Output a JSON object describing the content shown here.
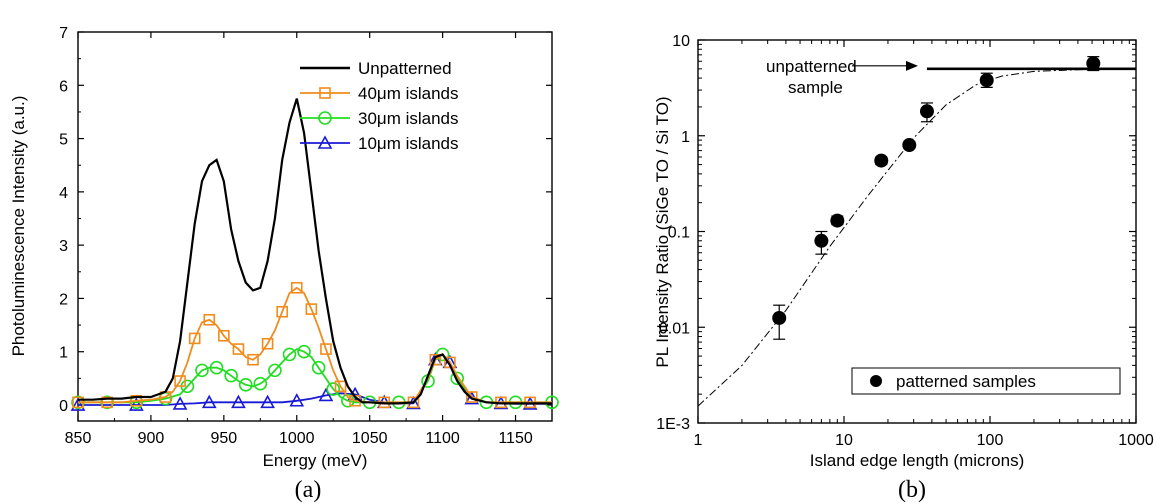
{
  "chart_data": [
    {
      "type": "line",
      "caption": "(a)",
      "xlabel": "Energy (meV)",
      "ylabel": "Photoluminescence Intensity (a.u.)",
      "xlim": [
        850,
        1175
      ],
      "ylim": [
        -0.3,
        7
      ],
      "xticks": [
        850,
        900,
        950,
        1000,
        1050,
        1100,
        1150
      ],
      "yticks": [
        0,
        1,
        2,
        3,
        4,
        5,
        6,
        7
      ],
      "legend_position": "top-right",
      "series": [
        {
          "name": "Unpatterned",
          "color": "#000000",
          "marker": "none",
          "x": [
            850,
            860,
            870,
            880,
            890,
            900,
            905,
            910,
            915,
            920,
            925,
            930,
            935,
            940,
            945,
            950,
            955,
            960,
            965,
            970,
            975,
            980,
            985,
            990,
            995,
            1000,
            1005,
            1010,
            1015,
            1020,
            1025,
            1030,
            1035,
            1040,
            1045,
            1050,
            1060,
            1070,
            1080,
            1085,
            1090,
            1095,
            1100,
            1105,
            1110,
            1115,
            1120,
            1130,
            1140,
            1150,
            1160,
            1175
          ],
          "y": [
            0.1,
            0.1,
            0.12,
            0.12,
            0.15,
            0.15,
            0.2,
            0.25,
            0.5,
            1.2,
            2.3,
            3.4,
            4.2,
            4.5,
            4.6,
            4.2,
            3.3,
            2.7,
            2.3,
            2.15,
            2.2,
            2.7,
            3.5,
            4.6,
            5.3,
            5.75,
            5.1,
            4.0,
            2.9,
            2.0,
            1.2,
            0.7,
            0.35,
            0.15,
            0.05,
            0.05,
            0.03,
            0.03,
            0.05,
            0.2,
            0.55,
            0.9,
            0.95,
            0.75,
            0.45,
            0.25,
            0.12,
            0.05,
            0.03,
            0.03,
            0.03,
            0.03
          ]
        },
        {
          "name": "40μm islands",
          "color": "#f08c1e",
          "marker": "square",
          "x": [
            850,
            860,
            870,
            880,
            890,
            900,
            910,
            915,
            920,
            925,
            930,
            935,
            940,
            945,
            950,
            955,
            960,
            965,
            970,
            975,
            980,
            985,
            990,
            995,
            1000,
            1005,
            1010,
            1015,
            1020,
            1025,
            1030,
            1035,
            1040,
            1050,
            1060,
            1070,
            1080,
            1090,
            1095,
            1100,
            1105,
            1110,
            1120,
            1130,
            1140,
            1150,
            1160,
            1175
          ],
          "y": [
            0.05,
            0.05,
            0.05,
            0.05,
            0.08,
            0.1,
            0.15,
            0.25,
            0.45,
            0.8,
            1.25,
            1.55,
            1.6,
            1.5,
            1.3,
            1.15,
            1.05,
            0.9,
            0.85,
            0.95,
            1.15,
            1.4,
            1.75,
            2.1,
            2.2,
            2.1,
            1.8,
            1.45,
            1.05,
            0.65,
            0.35,
            0.15,
            0.08,
            0.05,
            0.05,
            0.05,
            0.05,
            0.5,
            0.85,
            0.95,
            0.8,
            0.55,
            0.15,
            0.05,
            0.05,
            0.05,
            0.05,
            0.05
          ]
        },
        {
          "name": "30μm islands",
          "color": "#22dd22",
          "marker": "circle",
          "x": [
            850,
            860,
            870,
            880,
            890,
            900,
            910,
            920,
            925,
            930,
            935,
            940,
            945,
            950,
            955,
            960,
            965,
            970,
            975,
            980,
            985,
            990,
            995,
            1000,
            1005,
            1010,
            1015,
            1020,
            1025,
            1030,
            1035,
            1040,
            1050,
            1060,
            1070,
            1080,
            1090,
            1095,
            1100,
            1105,
            1110,
            1120,
            1130,
            1140,
            1150,
            1160,
            1175
          ],
          "y": [
            0.05,
            0.05,
            0.05,
            0.05,
            0.05,
            0.08,
            0.12,
            0.2,
            0.35,
            0.5,
            0.65,
            0.7,
            0.7,
            0.65,
            0.55,
            0.45,
            0.38,
            0.35,
            0.4,
            0.5,
            0.65,
            0.8,
            0.95,
            1.05,
            1.0,
            0.9,
            0.7,
            0.5,
            0.3,
            0.15,
            0.08,
            0.05,
            0.05,
            0.05,
            0.05,
            0.05,
            0.45,
            0.85,
            0.95,
            0.8,
            0.5,
            0.15,
            0.05,
            0.05,
            0.05,
            0.05,
            0.05
          ]
        },
        {
          "name": "10μm islands",
          "color": "#1a1ad6",
          "marker": "triangle",
          "x": [
            850,
            870,
            890,
            910,
            920,
            930,
            940,
            950,
            960,
            970,
            980,
            990,
            1000,
            1010,
            1020,
            1030,
            1040,
            1050,
            1060,
            1070,
            1080,
            1090,
            1095,
            1100,
            1105,
            1110,
            1120,
            1130,
            1140,
            1150,
            1160,
            1175
          ],
          "y": [
            0.0,
            0.0,
            0.0,
            0.0,
            0.02,
            0.03,
            0.05,
            0.05,
            0.05,
            0.05,
            0.05,
            0.05,
            0.08,
            0.12,
            0.18,
            0.22,
            0.2,
            0.1,
            0.05,
            0.03,
            0.03,
            0.5,
            0.85,
            0.95,
            0.8,
            0.5,
            0.12,
            0.05,
            0.03,
            0.02,
            0.02,
            0.02
          ]
        }
      ]
    },
    {
      "type": "scatter",
      "caption": "(b)",
      "xlabel": "Island edge length (microns)",
      "ylabel": "PL Intensity Ratio (SiGe TO / Si TO)",
      "xscale": "log",
      "yscale": "log",
      "xlim": [
        1,
        1000
      ],
      "ylim": [
        0.001,
        10
      ],
      "xtick_labels": [
        "1",
        "10",
        "100",
        "1000"
      ],
      "ytick_labels": [
        "1E-3",
        "0.01",
        "0.1",
        "1",
        "10"
      ],
      "legend_position": "bottom-right",
      "series": [
        {
          "name": "patterned samples",
          "marker": "filled-circle",
          "color": "#000000",
          "x": [
            3.6,
            7,
            9,
            18,
            28,
            37,
            95,
            510
          ],
          "y": [
            0.0125,
            0.08,
            0.13,
            0.55,
            0.8,
            1.8,
            3.8,
            5.7
          ],
          "err": [
            [
              0.0075,
              0.017
            ],
            [
              0.058,
              0.1
            ],
            [
              0.118,
              0.145
            ],
            [
              0.5,
              0.6
            ],
            [
              0.74,
              0.87
            ],
            [
              1.4,
              2.2
            ],
            [
              3.2,
              4.5
            ],
            [
              4.8,
              6.7
            ]
          ]
        }
      ],
      "fit_curve": {
        "style": "dash-dot",
        "x": [
          1,
          2,
          4,
          8,
          15,
          30,
          50,
          80,
          120,
          200,
          400,
          1000
        ],
        "y": [
          0.0015,
          0.004,
          0.015,
          0.07,
          0.25,
          0.95,
          2.1,
          3.4,
          4.2,
          4.7,
          4.9,
          5.0
        ]
      },
      "reference_line": {
        "y": 5.0,
        "x_start": 37,
        "x_end": 1000
      },
      "annotation": {
        "lines": [
          "unpatterned",
          "sample"
        ]
      }
    }
  ]
}
